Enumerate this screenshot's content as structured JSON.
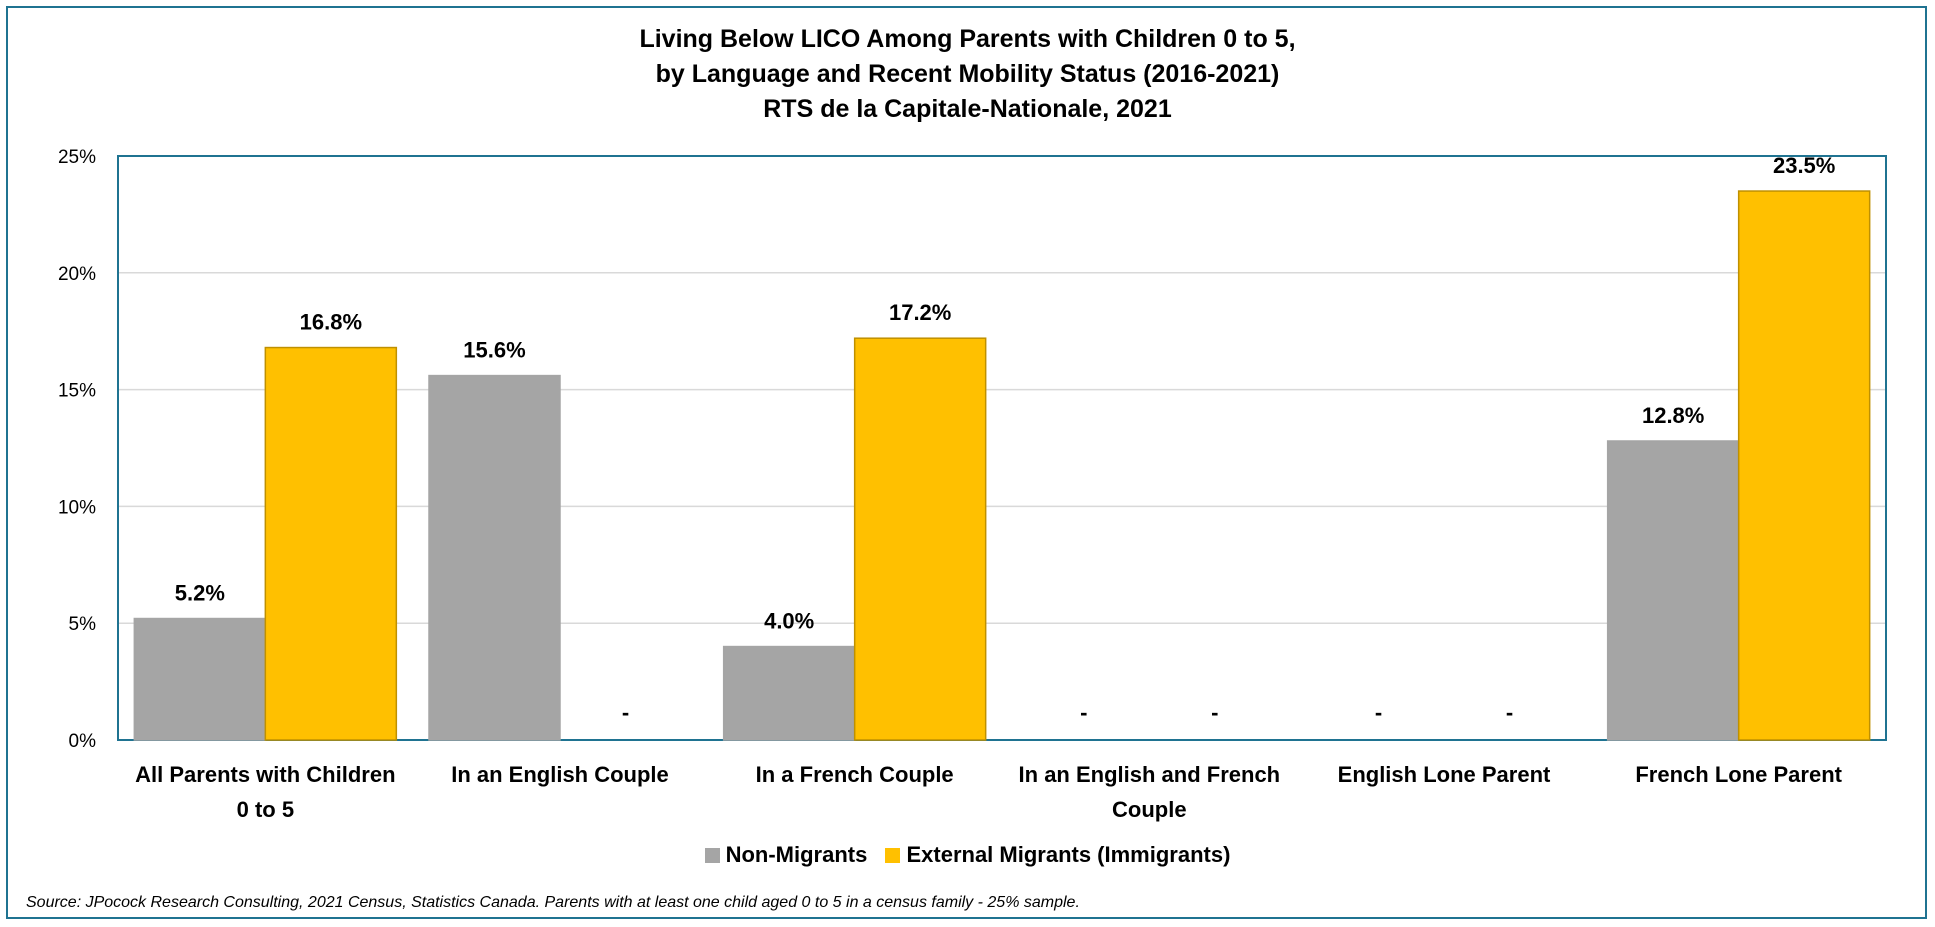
{
  "chart_data": {
    "type": "bar",
    "title_lines": [
      "Living Below LICO Among Parents with Children 0 to 5,",
      "by Language and Recent Mobility Status (2016-2021)",
      "RTS de la Capitale-Nationale, 2021"
    ],
    "categories": [
      [
        "All Parents with Children",
        "0 to 5"
      ],
      [
        "In an English Couple"
      ],
      [
        "In a French Couple"
      ],
      [
        "In an English and French",
        "Couple"
      ],
      [
        "English Lone Parent"
      ],
      [
        "French Lone Parent"
      ]
    ],
    "series": [
      {
        "name": "Non-Migrants",
        "color": "#a5a5a5",
        "values": [
          5.2,
          15.6,
          4.0,
          null,
          null,
          12.8
        ],
        "labels": [
          "5.2%",
          "15.6%",
          "4.0%",
          "-",
          "-",
          "12.8%"
        ]
      },
      {
        "name": "External Migrants (Immigrants)",
        "color": "#ffc000",
        "values": [
          16.8,
          null,
          17.2,
          null,
          null,
          23.5
        ],
        "labels": [
          "16.8%",
          "-",
          "17.2%",
          "-",
          "-",
          "23.5%"
        ]
      }
    ],
    "yticks": [
      "0%",
      "5%",
      "10%",
      "15%",
      "20%",
      "25%"
    ],
    "ylim": [
      0,
      25
    ],
    "grid": true,
    "legend_position": "bottom",
    "source": "Source: JPocock Research Consulting, 2021 Census, Statistics Canada. Parents with at least one child aged 0 to 5 in a census family - 25% sample."
  }
}
